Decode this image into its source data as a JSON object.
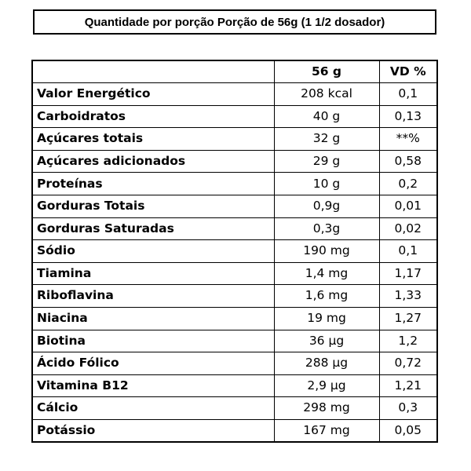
{
  "header": {
    "title": "Quantidade por porção Porção de 56g (1 1/2 dosador)"
  },
  "table": {
    "columns": [
      "",
      "56 g",
      "VD %"
    ],
    "rows": [
      {
        "name": "Valor Energético",
        "amount": "208 kcal",
        "vd": "0,1"
      },
      {
        "name": "Carboidratos",
        "amount": "40 g",
        "vd": "0,13"
      },
      {
        "name": "Açúcares totais",
        "amount": "32 g",
        "vd": "**%"
      },
      {
        "name": "Açúcares adicionados",
        "amount": "29 g",
        "vd": "0,58"
      },
      {
        "name": "Proteínas",
        "amount": "10 g",
        "vd": "0,2"
      },
      {
        "name": "Gorduras Totais",
        "amount": "0,9g",
        "vd": "0,01"
      },
      {
        "name": "Gorduras Saturadas",
        "amount": "0,3g",
        "vd": "0,02"
      },
      {
        "name": "Sódio",
        "amount": "190 mg",
        "vd": "0,1"
      },
      {
        "name": "Tiamina",
        "amount": "1,4 mg",
        "vd": "1,17"
      },
      {
        "name": "Riboflavina",
        "amount": "1,6 mg",
        "vd": "1,33"
      },
      {
        "name": "Niacina",
        "amount": "19 mg",
        "vd": "1,27"
      },
      {
        "name": "Biotina",
        "amount": "36 µg",
        "vd": "1,2"
      },
      {
        "name": "Ácido Fólico",
        "amount": "288 µg",
        "vd": "0,72"
      },
      {
        "name": "Vitamina B12",
        "amount": "2,9 µg",
        "vd": "1,21"
      },
      {
        "name": "Cálcio",
        "amount": "298 mg",
        "vd": "0,3"
      },
      {
        "name": "Potássio",
        "amount": "167 mg",
        "vd": "0,05"
      }
    ]
  }
}
